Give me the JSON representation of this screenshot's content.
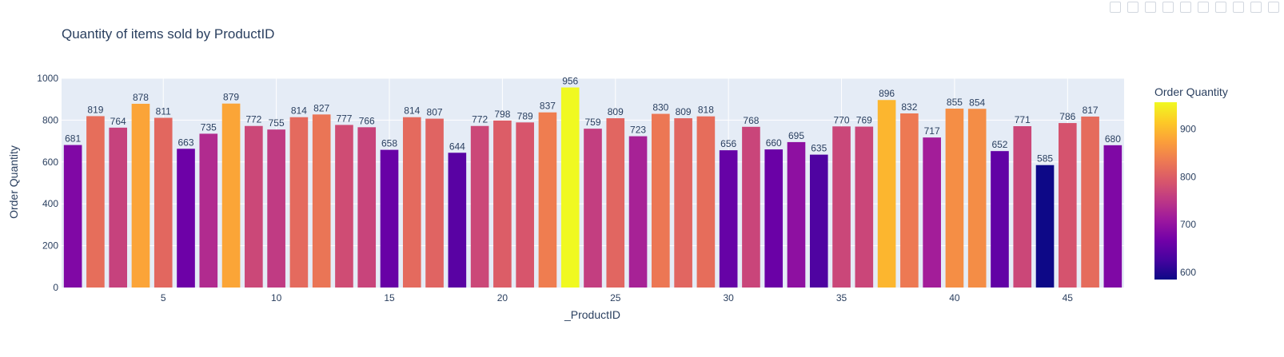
{
  "chart_data": {
    "type": "bar",
    "title": "Quantity of items sold by ProductID",
    "xlabel": "_ProductID",
    "ylabel": "Order Quantity",
    "x": [
      1,
      2,
      3,
      4,
      5,
      6,
      7,
      8,
      9,
      10,
      11,
      12,
      13,
      14,
      15,
      16,
      17,
      18,
      19,
      20,
      21,
      22,
      23,
      24,
      25,
      26,
      27,
      28,
      29,
      30,
      31,
      32,
      33,
      34,
      35,
      36,
      37,
      38,
      39,
      40,
      41,
      42,
      43,
      44,
      45,
      46,
      47
    ],
    "values": [
      681,
      819,
      764,
      878,
      811,
      663,
      735,
      879,
      772,
      755,
      814,
      827,
      777,
      766,
      658,
      814,
      807,
      644,
      772,
      798,
      789,
      837,
      956,
      759,
      809,
      723,
      830,
      809,
      818,
      656,
      768,
      660,
      695,
      635,
      770,
      769,
      896,
      832,
      717,
      855,
      854,
      652,
      771,
      585,
      786,
      817,
      680
    ],
    "x_ticks": [
      5,
      10,
      15,
      20,
      25,
      30,
      35,
      40,
      45
    ],
    "y_ticks": [
      0,
      200,
      400,
      600,
      800,
      1000
    ],
    "ylim": [
      0,
      1000
    ],
    "colorbar": {
      "title": "Order Quantity",
      "min": 585,
      "max": 956,
      "ticks": [
        600,
        700,
        800,
        900
      ]
    },
    "grid": true,
    "colors": {
      "plot_bg": "#e5ecf6",
      "grid": "#ffffff",
      "text": "#2a3f5f",
      "scale": [
        "#0d0887",
        "#46039f",
        "#7201a8",
        "#9c179e",
        "#bd3786",
        "#d8576b",
        "#ed7953",
        "#fb9f3a",
        "#fdca26",
        "#f0f921"
      ]
    }
  }
}
